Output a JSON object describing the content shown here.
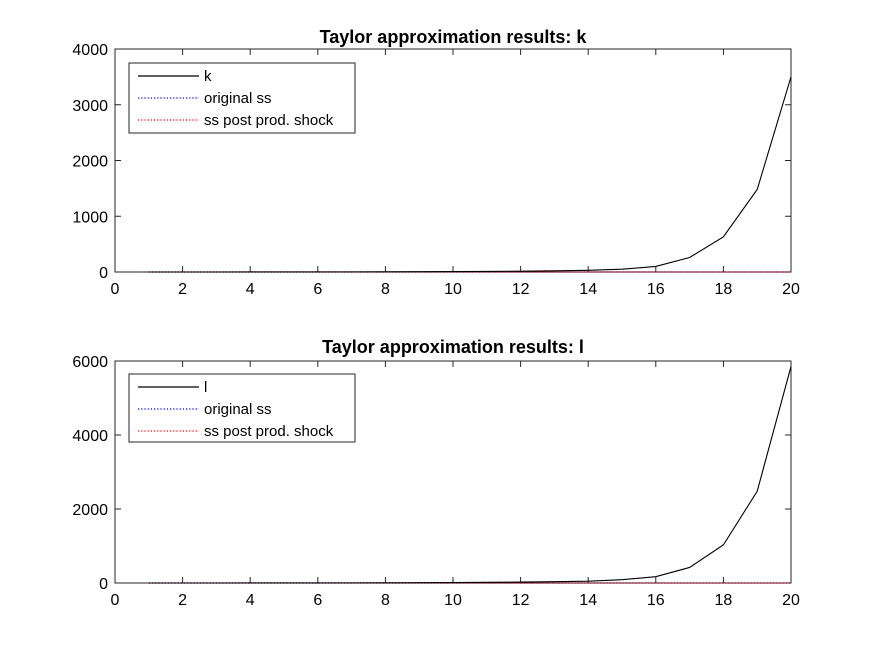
{
  "chart_data": [
    {
      "type": "line",
      "title": "Taylor approximation results: k",
      "xlabel": "",
      "ylabel": "",
      "xlim": [
        0,
        20
      ],
      "ylim": [
        0,
        4000
      ],
      "xticks": [
        "0",
        "2",
        "4",
        "6",
        "8",
        "10",
        "12",
        "14",
        "16",
        "18",
        "20"
      ],
      "yticks": [
        "0",
        "1000",
        "2000",
        "3000",
        "4000"
      ],
      "grid": false,
      "legend_position": "top-left",
      "x": [
        1,
        2,
        3,
        4,
        5,
        6,
        7,
        8,
        9,
        10,
        11,
        12,
        13,
        14,
        15,
        16,
        17,
        18,
        19,
        20
      ],
      "series": [
        {
          "name": "k",
          "color": "#000000",
          "style": "solid",
          "values": [
            0.03,
            0.07,
            0.15,
            0.3,
            0.6,
            1.2,
            2.1,
            3.5,
            5.5,
            8,
            11,
            15,
            22,
            30,
            50,
            100,
            260,
            630,
            1480,
            3500
          ]
        },
        {
          "name": "original ss",
          "color": "#0000ff",
          "style": "dotted",
          "values": [
            0,
            0,
            0,
            0,
            0,
            0,
            0,
            0,
            0,
            0,
            0,
            0,
            0,
            0,
            0,
            0,
            0,
            0,
            0,
            0
          ]
        },
        {
          "name": "ss post prod. shock",
          "color": "#ff0000",
          "style": "dotted",
          "values": [
            0,
            0,
            0,
            0,
            0,
            0,
            0,
            0,
            0,
            0,
            0,
            0,
            0,
            0,
            0,
            0,
            0,
            0,
            0,
            0
          ]
        }
      ]
    },
    {
      "type": "line",
      "title": "Taylor approximation results: l",
      "xlabel": "",
      "ylabel": "",
      "xlim": [
        0,
        20
      ],
      "ylim": [
        0,
        6000
      ],
      "xticks": [
        "0",
        "2",
        "4",
        "6",
        "8",
        "10",
        "12",
        "14",
        "16",
        "18",
        "20"
      ],
      "yticks": [
        "0",
        "2000",
        "4000",
        "6000"
      ],
      "grid": false,
      "legend_position": "top-left",
      "x": [
        1,
        2,
        3,
        4,
        5,
        6,
        7,
        8,
        9,
        10,
        11,
        12,
        13,
        14,
        15,
        16,
        17,
        18,
        19,
        20
      ],
      "series": [
        {
          "name": "l",
          "color": "#000000",
          "style": "solid",
          "values": [
            0.05,
            0.1,
            0.25,
            0.5,
            1,
            2,
            3.5,
            6,
            9,
            13,
            18,
            25,
            35,
            50,
            90,
            170,
            420,
            1030,
            2480,
            5850
          ]
        },
        {
          "name": "original ss",
          "color": "#0000ff",
          "style": "dotted",
          "values": [
            0,
            0,
            0,
            0,
            0,
            0,
            0,
            0,
            0,
            0,
            0,
            0,
            0,
            0,
            0,
            0,
            0,
            0,
            0,
            0
          ]
        },
        {
          "name": "ss post prod. shock",
          "color": "#ff0000",
          "style": "dotted",
          "values": [
            0,
            0,
            0,
            0,
            0,
            0,
            0,
            0,
            0,
            0,
            0,
            0,
            0,
            0,
            0,
            0,
            0,
            0,
            0,
            0
          ]
        }
      ]
    }
  ]
}
